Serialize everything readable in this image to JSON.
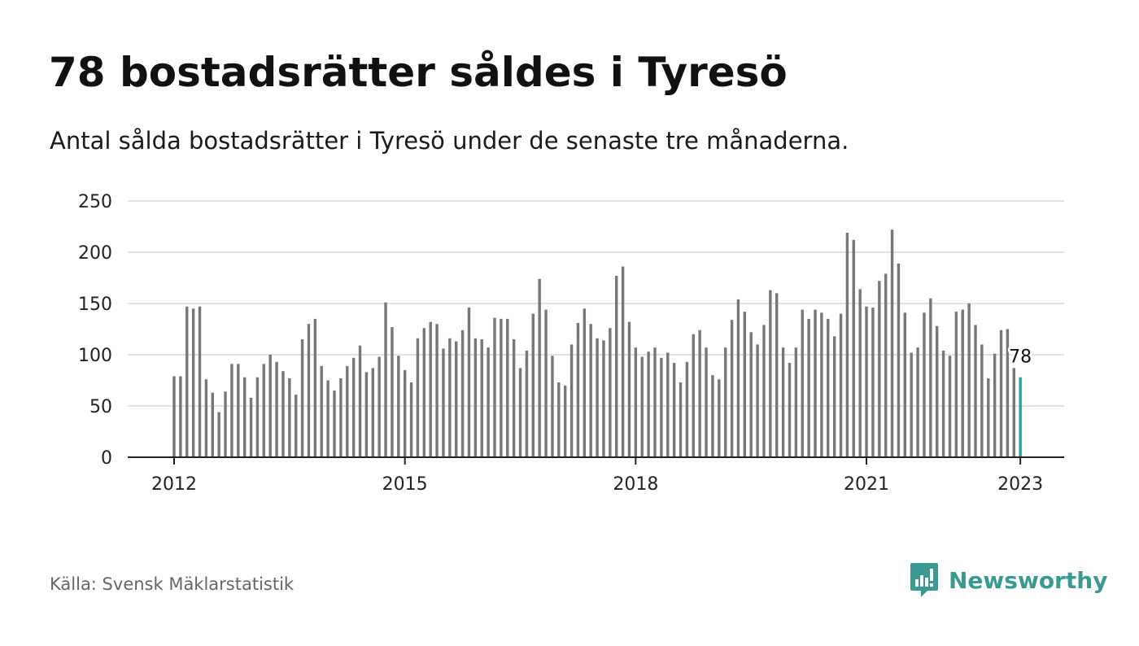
{
  "title": "78 bostadsrätter såldes i Tyresö",
  "subtitle": "Antal sålda bostadsrätter i Tyresö under de senaste tre månaderna.",
  "source": "Källa: Svensk Mäklarstatistik",
  "brand": {
    "name": "Newsworthy",
    "logo_icon": "newsworthy-chart-bubble-icon"
  },
  "colors": {
    "bar": "#76767b",
    "highlight": "#2aa198",
    "gridline": "#d9d9d9",
    "axis": "#222222",
    "brand": "#3a9a92"
  },
  "chart_data": {
    "type": "bar",
    "title": "78 bostadsrätter såldes i Tyresö",
    "subtitle": "Antal sålda bostadsrätter i Tyresö under de senaste tre månaderna.",
    "xlabel": "",
    "ylabel": "",
    "x_start": "2012-01",
    "x_step": "month",
    "ylim": [
      0,
      250
    ],
    "y_ticks": [
      0,
      50,
      100,
      150,
      200,
      250
    ],
    "x_ticks": [
      "2012",
      "2015",
      "2018",
      "2021",
      "2023"
    ],
    "grid": true,
    "values": [
      79,
      79,
      147,
      145,
      147,
      76,
      63,
      44,
      64,
      91,
      91,
      78,
      58,
      78,
      91,
      100,
      93,
      84,
      77,
      61,
      115,
      130,
      135,
      89,
      75,
      65,
      77,
      89,
      97,
      109,
      83,
      87,
      98,
      151,
      127,
      99,
      85,
      73,
      116,
      126,
      132,
      130,
      106,
      116,
      113,
      124,
      146,
      116,
      115,
      107,
      136,
      135,
      135,
      115,
      87,
      104,
      140,
      174,
      144,
      99,
      73,
      70,
      110,
      131,
      145,
      130,
      116,
      114,
      126,
      177,
      186,
      132,
      107,
      98,
      103,
      107,
      97,
      102,
      92,
      73,
      93,
      120,
      124,
      107,
      80,
      76,
      107,
      134,
      154,
      142,
      122,
      110,
      129,
      163,
      160,
      107,
      92,
      107,
      144,
      135,
      144,
      141,
      135,
      118,
      140,
      219,
      212,
      164,
      147,
      146,
      172,
      179,
      222,
      189,
      141,
      102,
      107,
      141,
      155,
      128,
      104,
      99,
      142,
      144,
      150,
      129,
      110,
      77,
      101,
      124,
      125,
      87,
      78
    ],
    "highlight_last": true,
    "last_label": "78"
  }
}
